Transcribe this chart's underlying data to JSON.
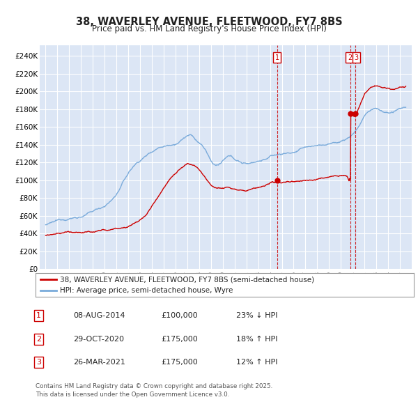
{
  "title": "38, WAVERLEY AVENUE, FLEETWOOD, FY7 8BS",
  "subtitle": "Price paid vs. HM Land Registry's House Price Index (HPI)",
  "ylim": [
    0,
    250000
  ],
  "yticks": [
    0,
    20000,
    40000,
    60000,
    80000,
    100000,
    120000,
    140000,
    160000,
    180000,
    200000,
    220000,
    240000
  ],
  "background_color": "#dce6f5",
  "grid_color": "#ffffff",
  "sale_points": [
    {
      "date_num": 2014.6,
      "price": 100000,
      "label": "1"
    },
    {
      "date_num": 2020.83,
      "price": 175000,
      "label": "2"
    },
    {
      "date_num": 2021.23,
      "price": 175000,
      "label": "3"
    }
  ],
  "legend_line1": "38, WAVERLEY AVENUE, FLEETWOOD, FY7 8BS (semi-detached house)",
  "legend_line2": "HPI: Average price, semi-detached house, Wyre",
  "table_rows": [
    [
      "1",
      "08-AUG-2014",
      "£100,000",
      "23% ↓ HPI"
    ],
    [
      "2",
      "29-OCT-2020",
      "£175,000",
      "18% ↑ HPI"
    ],
    [
      "3",
      "26-MAR-2021",
      "£175,000",
      "12% ↑ HPI"
    ]
  ],
  "footnote": "Contains HM Land Registry data © Crown copyright and database right 2025.\nThis data is licensed under the Open Government Licence v3.0.",
  "red_color": "#cc0000",
  "blue_color": "#7aabdb",
  "shade_color": "#d0e4f7"
}
